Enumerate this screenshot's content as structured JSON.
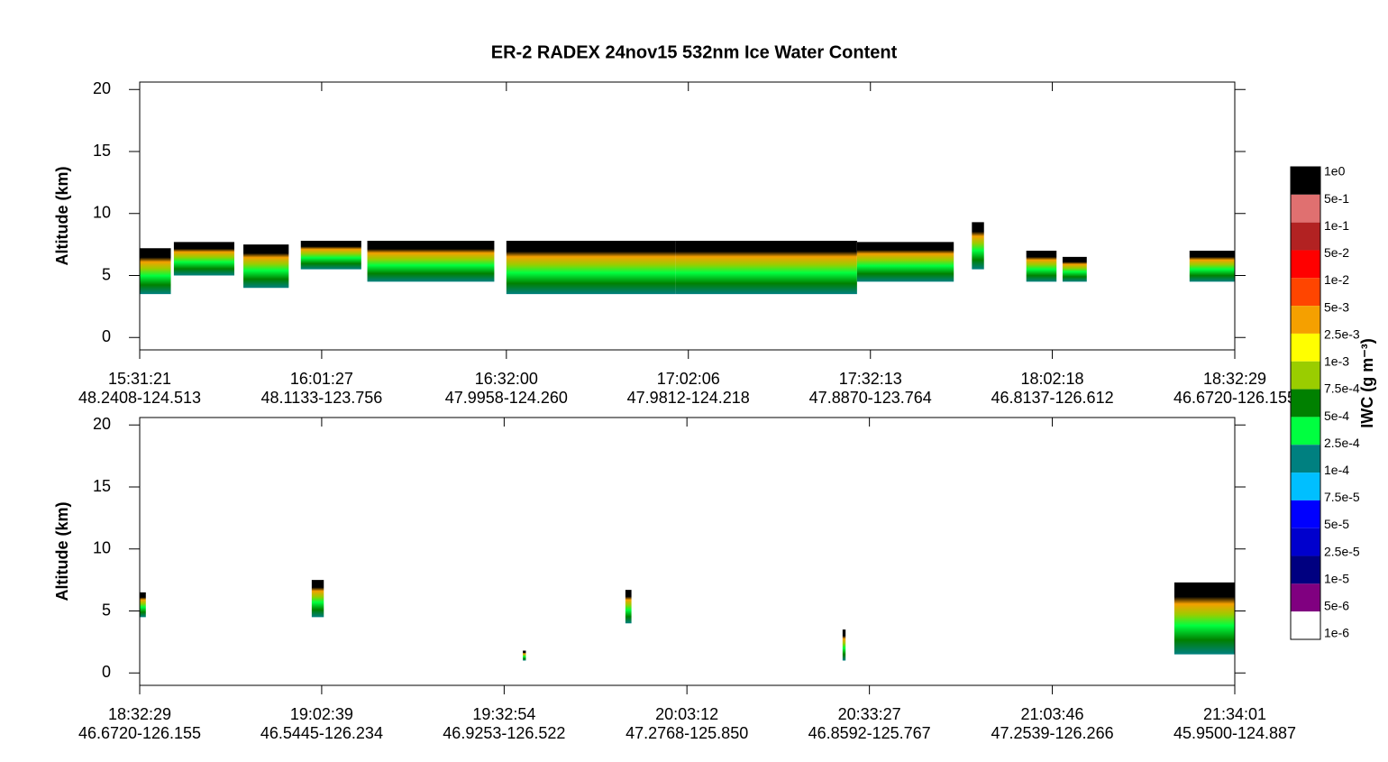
{
  "chart_data": [
    {
      "type": "curtain",
      "title": "ER-2  RADEX  24nov15  532nm Ice Water Content",
      "y_label": "Altitude (km)",
      "ylim": [
        -1,
        20.6
      ],
      "yticks": [
        0,
        5,
        10,
        15,
        20
      ],
      "xlim": [
        "15:31:21",
        "18:32:29"
      ],
      "xticks": [
        {
          "time": "15:31:21",
          "position": "48.2408-124.513"
        },
        {
          "time": "16:01:27",
          "position": "48.1133-123.756"
        },
        {
          "time": "16:32:00",
          "position": "47.9958-124.260"
        },
        {
          "time": "17:02:06",
          "position": "47.9812-124.218"
        },
        {
          "time": "17:32:13",
          "position": "47.8870-123.764"
        },
        {
          "time": "18:02:18",
          "position": "46.8137-126.612"
        },
        {
          "time": "18:32:29",
          "position": "46.6720-126.155"
        }
      ],
      "segments": [
        {
          "start": "15:31:21",
          "end": "15:36:30",
          "base": 3.5,
          "top": 7.2
        },
        {
          "start": "15:37:00",
          "end": "15:47:00",
          "base": 5,
          "top": 7.7
        },
        {
          "start": "15:48:30",
          "end": "15:56:00",
          "base": 4,
          "top": 7.5
        },
        {
          "start": "15:58:00",
          "end": "16:08:00",
          "base": 5.5,
          "top": 7.8
        },
        {
          "start": "16:09:00",
          "end": "16:30:00",
          "base": 4.5,
          "top": 7.8
        },
        {
          "start": "16:32:00",
          "end": "17:00:00",
          "base": 3.5,
          "top": 7.8
        },
        {
          "start": "17:00:00",
          "end": "17:30:00",
          "base": 3.5,
          "top": 7.8
        },
        {
          "start": "17:30:00",
          "end": "17:46:00",
          "base": 4.5,
          "top": 7.7
        },
        {
          "start": "17:49:00",
          "end": "17:51:00",
          "base": 5.5,
          "top": 9.3
        },
        {
          "start": "17:58:00",
          "end": "18:03:00",
          "base": 4.5,
          "top": 7
        },
        {
          "start": "18:04:00",
          "end": "18:08:00",
          "base": 4.5,
          "top": 6.5
        },
        {
          "start": "18:25:00",
          "end": "18:32:29",
          "base": 4.5,
          "top": 7
        }
      ]
    },
    {
      "type": "curtain",
      "y_label": "Altitude (km)",
      "ylim": [
        -1,
        20.6
      ],
      "yticks": [
        0,
        5,
        10,
        15,
        20
      ],
      "xlim": [
        "18:32:29",
        "21:34:01"
      ],
      "xticks": [
        {
          "time": "18:32:29",
          "position": "46.6720-126.155"
        },
        {
          "time": "19:02:39",
          "position": "46.5445-126.234"
        },
        {
          "time": "19:32:54",
          "position": "46.9253-126.522"
        },
        {
          "time": "20:03:12",
          "position": "47.2768-125.850"
        },
        {
          "time": "20:33:27",
          "position": "46.8592-125.767"
        },
        {
          "time": "21:03:46",
          "position": "47.2539-126.266"
        },
        {
          "time": "21:34:01",
          "position": "45.9500-124.887"
        }
      ],
      "segments": [
        {
          "start": "18:32:29",
          "end": "18:33:30",
          "base": 4.5,
          "top": 6.5
        },
        {
          "start": "19:01:00",
          "end": "19:03:00",
          "base": 4.5,
          "top": 7.5
        },
        {
          "start": "19:36:00",
          "end": "19:36:30",
          "base": 1,
          "top": 1.8
        },
        {
          "start": "19:53:00",
          "end": "19:54:00",
          "base": 4,
          "top": 6.7
        },
        {
          "start": "20:29:00",
          "end": "20:29:30",
          "base": 1,
          "top": 3.5
        },
        {
          "start": "21:24:00",
          "end": "21:34:01",
          "base": 1.5,
          "top": 7.3
        }
      ]
    }
  ],
  "colorbar": {
    "label": "IWC (g m⁻³)",
    "ticks": [
      "1e0",
      "5e-1",
      "1e-1",
      "5e-2",
      "1e-2",
      "5e-3",
      "2.5e-3",
      "1e-3",
      "7.5e-4",
      "5e-4",
      "2.5e-4",
      "1e-4",
      "7.5e-5",
      "5e-5",
      "2.5e-5",
      "1e-5",
      "5e-6",
      "1e-6"
    ],
    "colors": [
      "#000000",
      "#e07070",
      "#b22222",
      "#ff0000",
      "#ff4500",
      "#f5a000",
      "#ffff00",
      "#9acd00",
      "#008000",
      "#00ff40",
      "#008080",
      "#00bfff",
      "#0000ff",
      "#0000cd",
      "#000080",
      "#800080",
      "#ffffff"
    ]
  }
}
